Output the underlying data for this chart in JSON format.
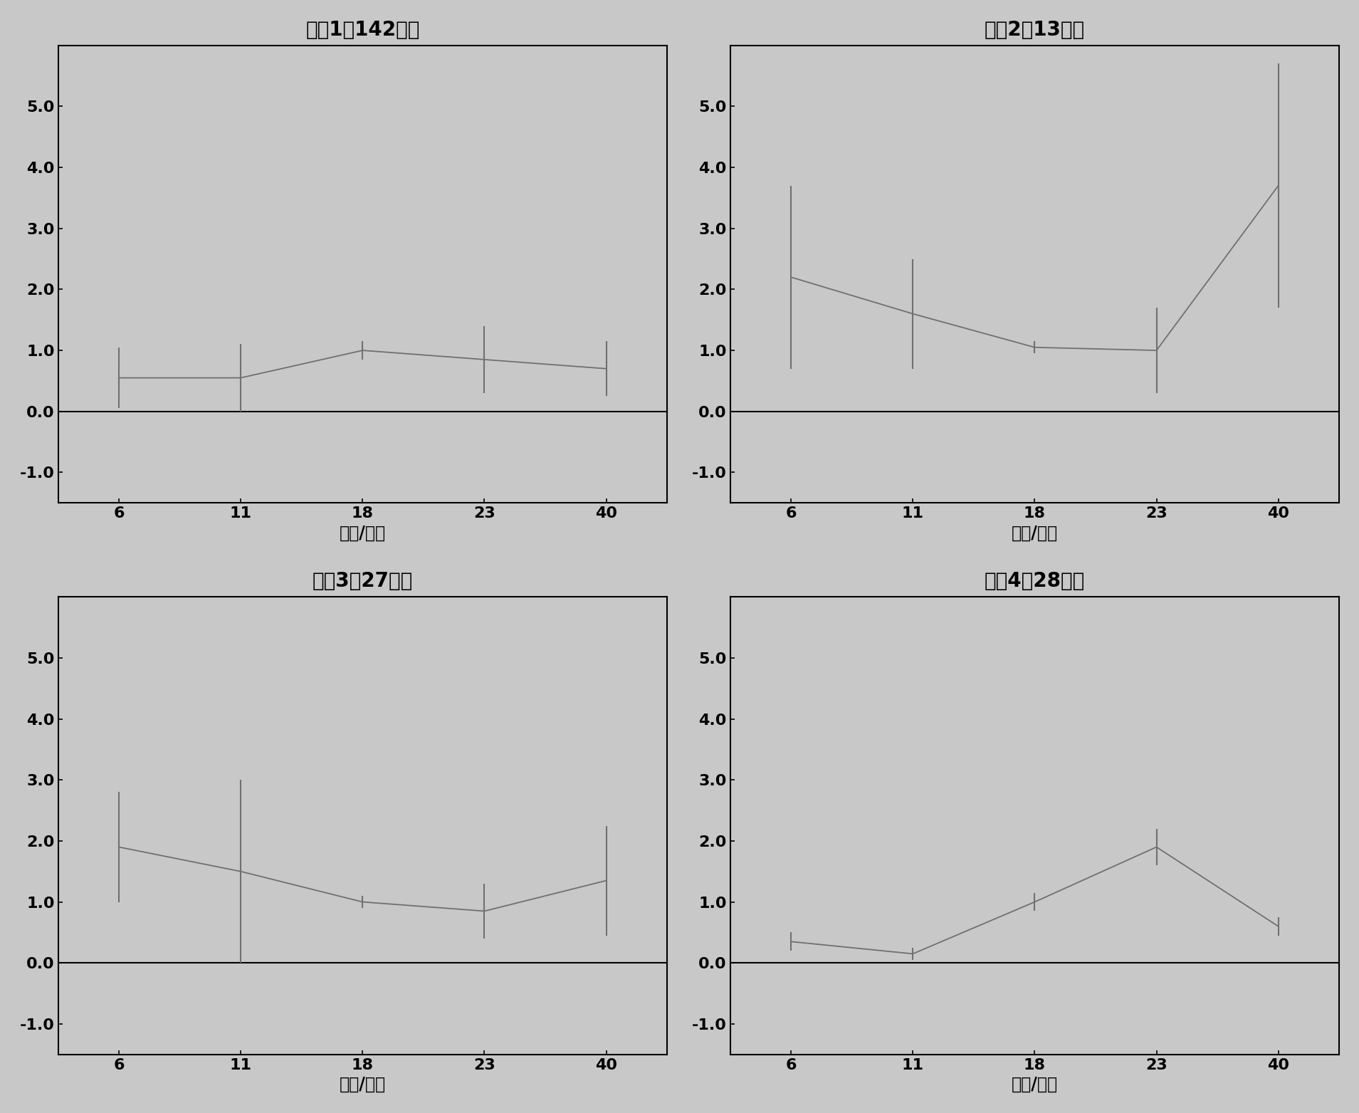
{
  "subplots": [
    {
      "title": "类列1（142种）",
      "x_labels": [
        "6",
        "11",
        "18",
        "23",
        "40"
      ],
      "y": [
        0.55,
        0.55,
        1.0,
        0.85,
        0.7
      ],
      "yerr": [
        0.5,
        0.55,
        0.15,
        0.55,
        0.45
      ]
    },
    {
      "title": "类列2（13种）",
      "x_labels": [
        "6",
        "11",
        "18",
        "23",
        "40"
      ],
      "y": [
        2.2,
        1.6,
        1.05,
        1.0,
        3.7
      ],
      "yerr": [
        1.5,
        0.9,
        0.1,
        0.7,
        2.0
      ]
    },
    {
      "title": "类列3（27种）",
      "x_labels": [
        "6",
        "11",
        "18",
        "23",
        "40"
      ],
      "y": [
        1.9,
        1.5,
        1.0,
        0.85,
        1.35
      ],
      "yerr": [
        0.9,
        1.5,
        0.1,
        0.45,
        0.9
      ]
    },
    {
      "title": "类列4（28种）",
      "x_labels": [
        "6",
        "11",
        "18",
        "23",
        "40"
      ],
      "y": [
        0.35,
        0.15,
        1.0,
        1.9,
        0.6
      ],
      "yerr": [
        0.15,
        0.1,
        0.15,
        0.3,
        0.15
      ]
    }
  ],
  "xlabel": "时间/小时",
  "ylim": [
    -1.5,
    6.0
  ],
  "yticks": [
    -1.0,
    0.0,
    1.0,
    2.0,
    3.0,
    4.0,
    5.0
  ],
  "yticklabels": [
    "-1.0",
    "0.0",
    "1.0",
    "2.0",
    "3.0",
    "4.0",
    "5.0"
  ],
  "line_color": "#707070",
  "bg_color": "#c8c8c8",
  "plot_bg_color": "#c8c8c8",
  "border_color": "#000000",
  "title_fontsize": 20,
  "label_fontsize": 17,
  "tick_fontsize": 16
}
